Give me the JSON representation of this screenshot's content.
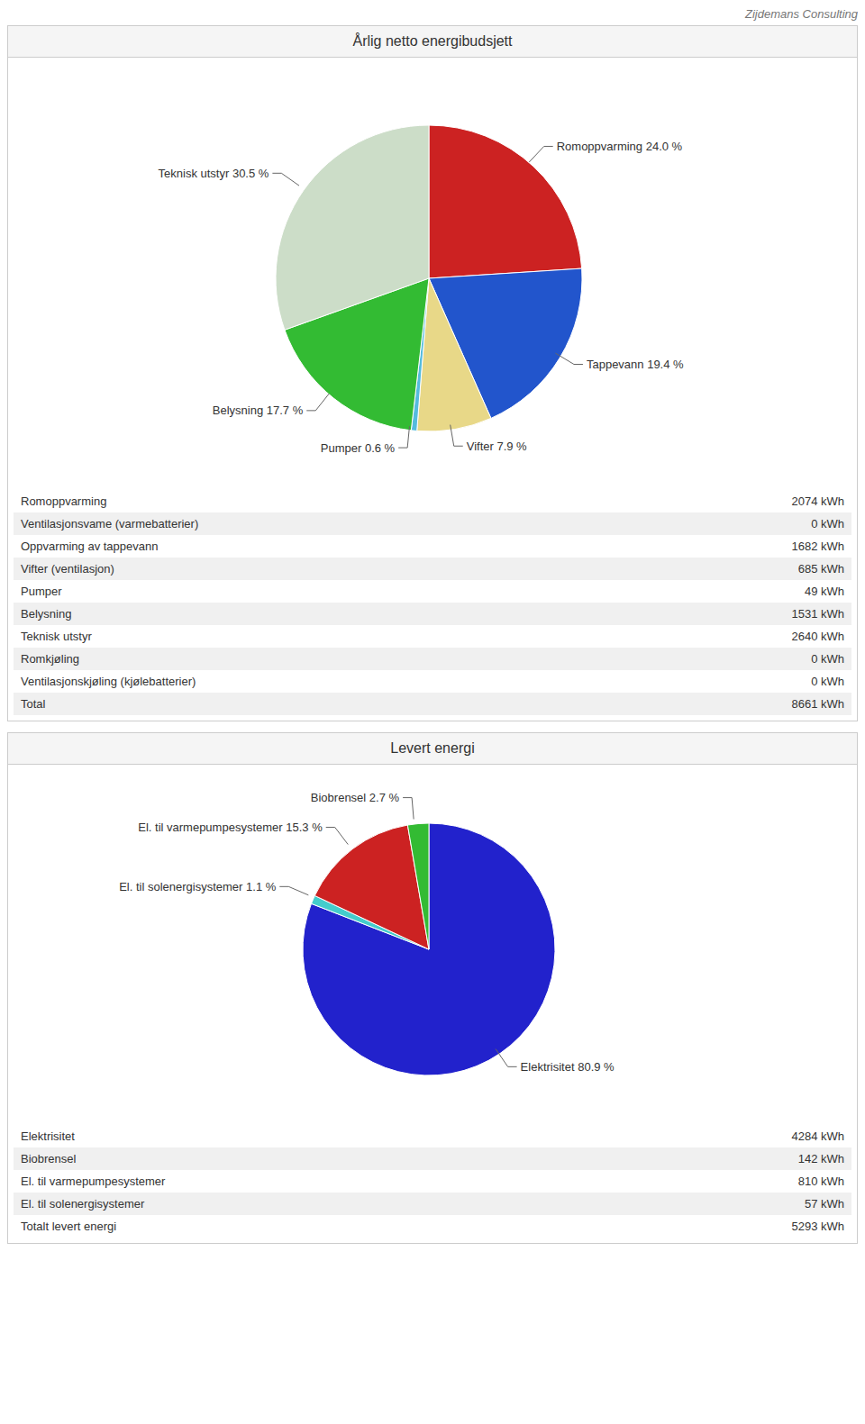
{
  "chart_data": [
    {
      "type": "pie",
      "title": "Årlig netto energibudsjett",
      "annotations": [
        "Zijdemans Consulting"
      ],
      "categories": [
        "Romoppvarming 24.0 %",
        "Tappevann 19.4 %",
        "Vifter 7.9 %",
        "Pumper 0.6 %",
        "Belysning 17.7 %",
        "Teknisk utstyr 30.5 %"
      ],
      "values": [
        24.0,
        19.4,
        7.9,
        0.6,
        17.7,
        30.5
      ],
      "colors": [
        "#cc2222",
        "#2255cc",
        "#e8d888",
        "#55bbdd",
        "#33bb33",
        "#ccddc8"
      ],
      "table": [
        [
          "Romoppvarming",
          "2074 kWh"
        ],
        [
          "Ventilasjonsvame (varmebatterier)",
          "0 kWh"
        ],
        [
          "Oppvarming av tappevann",
          "1682 kWh"
        ],
        [
          "Vifter (ventilasjon)",
          "685 kWh"
        ],
        [
          "Pumper",
          "49 kWh"
        ],
        [
          "Belysning",
          "1531 kWh"
        ],
        [
          "Teknisk utstyr",
          "2640 kWh"
        ],
        [
          "Romkjøling",
          "0 kWh"
        ],
        [
          "Ventilasjonskjøling (kjølebatterier)",
          "0 kWh"
        ],
        [
          "Total",
          "8661 kWh"
        ]
      ]
    },
    {
      "type": "pie",
      "title": "Levert energi",
      "categories": [
        "Elektrisitet 80.9 %",
        "El. til solenergisystemer 1.1 %",
        "El. til varmepumpesystemer 15.3 %",
        "Biobrensel 2.7 %"
      ],
      "values": [
        80.9,
        1.1,
        15.3,
        2.7
      ],
      "colors": [
        "#2222cc",
        "#44cccc",
        "#cc2222",
        "#33bb33"
      ],
      "table": [
        [
          "Elektrisitet",
          "4284 kWh"
        ],
        [
          "Biobrensel",
          "142 kWh"
        ],
        [
          "El. til varmepumpesystemer",
          "810 kWh"
        ],
        [
          "El. til solenergisystemer",
          "57 kWh"
        ],
        [
          "Totalt levert energi",
          "5293 kWh"
        ]
      ]
    }
  ]
}
